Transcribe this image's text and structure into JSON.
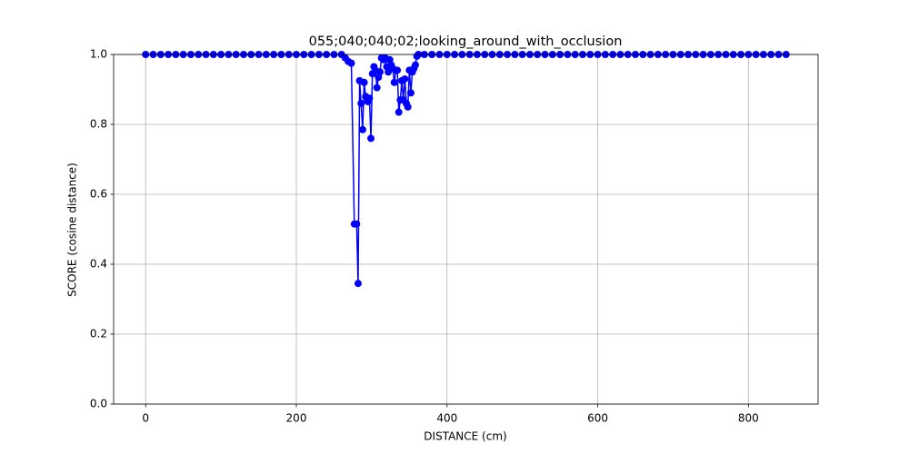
{
  "chart_data": {
    "type": "line",
    "title": "055;040;040;02;looking_around_with_occlusion",
    "xlabel": "DISTANCE (cm)",
    "ylabel": "SCORE (cosine distance)",
    "color": "#0000ff",
    "grid": true,
    "xlim": [
      -42.5,
      892.5
    ],
    "ylim": [
      0,
      1
    ],
    "xticks": [
      0,
      200,
      400,
      600,
      800
    ],
    "yticks": [
      {
        "value": 0,
        "label": "0.0"
      },
      0.2,
      0.4,
      0.6,
      0.8,
      {
        "value": 1,
        "label": "1.0"
      }
    ],
    "x": [
      0,
      10,
      20,
      30,
      40,
      50,
      60,
      70,
      80,
      90,
      100,
      110,
      120,
      130,
      140,
      150,
      160,
      170,
      180,
      190,
      200,
      210,
      220,
      230,
      240,
      250,
      260,
      265,
      269,
      273,
      277,
      280,
      282,
      284,
      286,
      288,
      290,
      292,
      295,
      297,
      299,
      301,
      303,
      305,
      307,
      309,
      311,
      313,
      316,
      318,
      320,
      322,
      324,
      326,
      328,
      330,
      332,
      334,
      336,
      338,
      340,
      342,
      344,
      346,
      348,
      350,
      352,
      354,
      356,
      358,
      360,
      362,
      370,
      380,
      390,
      400,
      410,
      420,
      430,
      440,
      450,
      460,
      470,
      480,
      490,
      500,
      510,
      520,
      530,
      540,
      550,
      560,
      570,
      580,
      590,
      600,
      610,
      620,
      630,
      640,
      650,
      660,
      670,
      680,
      690,
      700,
      710,
      720,
      730,
      740,
      750,
      760,
      770,
      780,
      790,
      800,
      810,
      820,
      830,
      840,
      850
    ],
    "values": [
      1,
      1,
      1,
      1,
      1,
      1,
      1,
      1,
      1,
      1,
      1,
      1,
      1,
      1,
      1,
      1,
      1,
      1,
      1,
      1,
      1,
      1,
      1,
      1,
      1,
      1,
      1,
      0.99,
      0.98,
      0.975,
      0.515,
      0.515,
      0.345,
      0.925,
      0.86,
      0.785,
      0.92,
      0.88,
      0.865,
      0.875,
      0.76,
      0.945,
      0.965,
      0.955,
      0.905,
      0.935,
      0.95,
      0.99,
      0.985,
      0.99,
      0.965,
      0.95,
      0.985,
      0.97,
      0.96,
      0.92,
      0.955,
      0.955,
      0.835,
      0.87,
      0.925,
      0.87,
      0.93,
      0.86,
      0.85,
      0.955,
      0.89,
      0.95,
      0.96,
      0.97,
      0.995,
      1,
      1,
      1,
      1,
      1,
      1,
      1,
      1,
      1,
      1,
      1,
      1,
      1,
      1,
      1,
      1,
      1,
      1,
      1,
      1,
      1,
      1,
      1,
      1,
      1,
      1,
      1,
      1,
      1,
      1,
      1,
      1,
      1,
      1,
      1,
      1,
      1,
      1,
      1,
      1,
      1,
      1,
      1,
      1,
      1,
      1,
      1,
      1,
      1,
      1
    ]
  }
}
